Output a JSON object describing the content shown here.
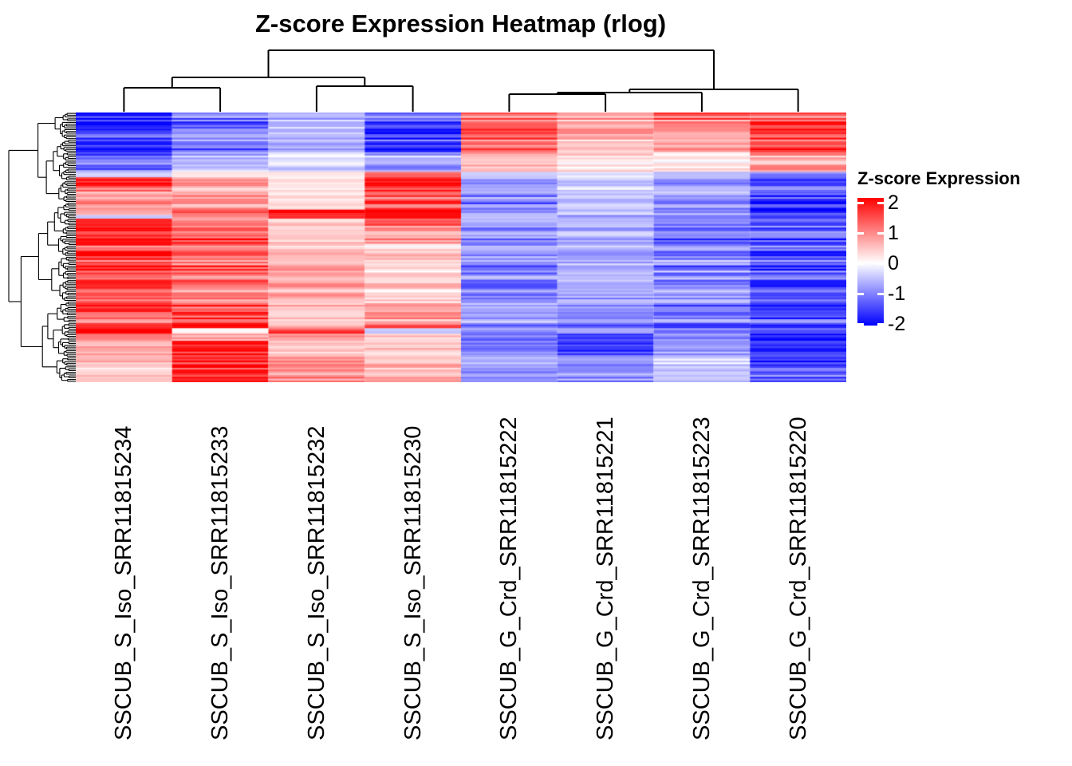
{
  "title": "Z-score Expression Heatmap (rlog)",
  "legend": {
    "title": "Z-score Expression",
    "ticks": [
      {
        "label": "2",
        "value": 2
      },
      {
        "label": "1",
        "value": 1
      },
      {
        "label": "0",
        "value": 0
      },
      {
        "label": "-1",
        "value": -1
      },
      {
        "label": "-2",
        "value": -2
      }
    ]
  },
  "chart_data": {
    "type": "heatmap",
    "title": "Z-score Expression Heatmap (rlog)",
    "legend_title": "Z-score Expression",
    "columns": [
      "SSCUB_S_Iso_SRR11815234",
      "SSCUB_S_Iso_SRR11815233",
      "SSCUB_S_Iso_SRR11815232",
      "SSCUB_S_Iso_SRR11815230",
      "SSCUB_G_Crd_SRR11815222",
      "SSCUB_G_Crd_SRR11815221",
      "SSCUB_G_Crd_SRR11815223",
      "SSCUB_G_Crd_SRR11815220"
    ],
    "colorscale": {
      "low": "#0000FF",
      "mid": "#FFFFFF",
      "high": "#FF0000",
      "min": -2.2,
      "max": 2.2
    },
    "n_rows": 150,
    "jitter_seed": 42,
    "row_blocks": [
      {
        "count": 4,
        "values": [
          -2.3,
          -1.2,
          -0.7,
          -1.2,
          1.4,
          0.9,
          1.6,
          1.4
        ],
        "jitter": 0.3
      },
      {
        "count": 5,
        "values": [
          -2.0,
          -1.4,
          -0.5,
          -1.5,
          1.2,
          0.7,
          1.0,
          1.6
        ],
        "jitter": 0.35
      },
      {
        "count": 6,
        "values": [
          -1.8,
          -0.9,
          -0.6,
          -2.2,
          1.7,
          1.0,
          0.8,
          2.0
        ],
        "jitter": 0.3
      },
      {
        "count": 7,
        "values": [
          -2.2,
          -1.3,
          -0.8,
          -1.9,
          1.5,
          0.5,
          0.9,
          1.7
        ],
        "jitter": 0.3
      },
      {
        "count": 11,
        "values": [
          -1.5,
          -0.7,
          -0.3,
          -0.9,
          0.6,
          0.3,
          0.2,
          1.0
        ],
        "jitter": 0.45
      },
      {
        "count": 3,
        "values": [
          -0.3,
          0.2,
          0.1,
          0.9,
          -0.4,
          -0.2,
          -0.5,
          -0.8
        ],
        "jitter": 0.3
      },
      {
        "count": 8,
        "values": [
          1.7,
          0.8,
          0.3,
          2.2,
          -0.8,
          -0.5,
          -0.9,
          -1.5
        ],
        "jitter": 0.35
      },
      {
        "count": 10,
        "values": [
          1.1,
          0.9,
          0.4,
          1.6,
          -1.2,
          -0.6,
          -1.0,
          -1.9
        ],
        "jitter": 0.4
      },
      {
        "count": 3,
        "values": [
          0.6,
          1.2,
          1.9,
          2.1,
          -0.7,
          -0.5,
          -0.8,
          -1.6
        ],
        "jitter": 0.3
      },
      {
        "count": 2,
        "values": [
          -0.5,
          0.8,
          1.5,
          1.8,
          -0.6,
          -0.7,
          -0.9,
          -1.4
        ],
        "jitter": 0.25
      },
      {
        "count": 4,
        "values": [
          2.0,
          1.1,
          0.5,
          1.6,
          -0.8,
          -0.6,
          -1.2,
          -1.6
        ],
        "jitter": 0.3
      },
      {
        "count": 10,
        "values": [
          2.3,
          1.5,
          0.4,
          0.8,
          -1.0,
          -0.7,
          -1.3,
          -1.4
        ],
        "jitter": 0.3
      },
      {
        "count": 11,
        "values": [
          1.9,
          1.3,
          0.6,
          0.4,
          -0.9,
          -0.8,
          -1.1,
          -1.5
        ],
        "jitter": 0.4
      },
      {
        "count": 11,
        "values": [
          1.8,
          1.4,
          0.7,
          0.3,
          -1.1,
          -0.6,
          -1.2,
          -1.6
        ],
        "jitter": 0.4
      },
      {
        "count": 11,
        "values": [
          1.7,
          1.2,
          0.8,
          0.5,
          -1.4,
          -0.9,
          -1.0,
          -1.8
        ],
        "jitter": 0.4
      },
      {
        "count": 5,
        "values": [
          2.2,
          1.5,
          0.6,
          0.9,
          -0.8,
          -1.0,
          -1.5,
          -2.2
        ],
        "jitter": 0.3
      },
      {
        "count": 9,
        "values": [
          1.2,
          1.8,
          0.5,
          1.0,
          -0.9,
          -1.1,
          -1.3,
          -1.5
        ],
        "jitter": 0.4
      },
      {
        "count": 3,
        "values": [
          2.4,
          0.2,
          1.5,
          -0.3,
          -0.9,
          -0.7,
          -1.0,
          -1.2
        ],
        "jitter": 0.25
      },
      {
        "count": 4,
        "values": [
          0.9,
          0.6,
          0.8,
          0.4,
          -1.0,
          -1.3,
          -0.8,
          -1.6
        ],
        "jitter": 0.4
      },
      {
        "count": 9,
        "values": [
          0.8,
          2.2,
          0.6,
          0.5,
          -1.1,
          -1.7,
          -1.0,
          -1.9
        ],
        "jitter": 0.4
      },
      {
        "count": 4,
        "values": [
          0.7,
          2.3,
          1.2,
          0.6,
          -0.9,
          -1.2,
          -0.4,
          -2.2
        ],
        "jitter": 0.3
      },
      {
        "count": 10,
        "values": [
          0.6,
          2.2,
          1.0,
          0.8,
          -1.0,
          -1.1,
          -0.5,
          -1.5
        ],
        "jitter": 0.4
      }
    ],
    "col_dendrogram": {
      "leaves": [
        "L1",
        "L2",
        "L3",
        "L4",
        "L5",
        "L6",
        "L7",
        "L8"
      ],
      "merges": [
        {
          "id": "n12",
          "a": "L1",
          "b": "L2",
          "h": 0.382
        },
        {
          "id": "n34",
          "a": "L3",
          "b": "L4",
          "h": 0.408
        },
        {
          "id": "nL",
          "a": "n12",
          "b": "n34",
          "h": 0.553
        },
        {
          "id": "n56",
          "a": "L5",
          "b": "L6",
          "h": 0.276
        },
        {
          "id": "n567",
          "a": "n56",
          "b": "L7",
          "h": 0.303
        },
        {
          "id": "nR",
          "a": "n567",
          "b": "L8",
          "h": 0.355
        },
        {
          "id": "root",
          "a": "nL",
          "b": "nR",
          "h": 1.0
        }
      ]
    },
    "row_dendrogram": {
      "seed": 7,
      "root_split_row": 50
    }
  }
}
